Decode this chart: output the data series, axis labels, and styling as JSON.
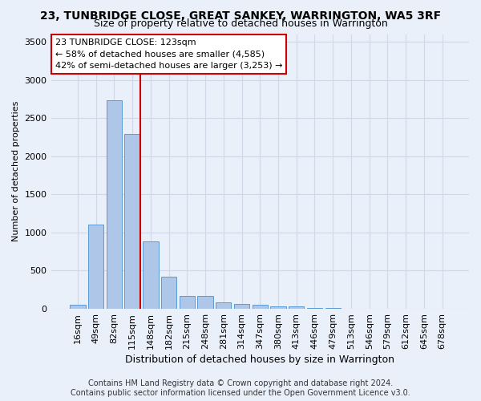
{
  "title1": "23, TUNBRIDGE CLOSE, GREAT SANKEY, WARRINGTON, WA5 3RF",
  "title2": "Size of property relative to detached houses in Warrington",
  "xlabel": "Distribution of detached houses by size in Warrington",
  "ylabel": "Number of detached properties",
  "categories": [
    "16sqm",
    "49sqm",
    "82sqm",
    "115sqm",
    "148sqm",
    "182sqm",
    "215sqm",
    "248sqm",
    "281sqm",
    "314sqm",
    "347sqm",
    "380sqm",
    "413sqm",
    "446sqm",
    "479sqm",
    "513sqm",
    "546sqm",
    "579sqm",
    "612sqm",
    "645sqm",
    "678sqm"
  ],
  "values": [
    55,
    1105,
    2730,
    2290,
    880,
    425,
    170,
    165,
    90,
    60,
    55,
    30,
    30,
    10,
    10,
    0,
    0,
    0,
    0,
    0,
    0
  ],
  "bar_color": "#aec6e8",
  "bar_edge_color": "#5b9bd5",
  "vline_x_idx": 3,
  "vline_color": "#cc0000",
  "annotation_line1": "23 TUNBRIDGE CLOSE: 123sqm",
  "annotation_line2": "← 58% of detached houses are smaller (4,585)",
  "annotation_line3": "42% of semi-detached houses are larger (3,253) →",
  "annotation_box_color": "white",
  "annotation_box_edge": "#cc0000",
  "ylim": [
    0,
    3600
  ],
  "yticks": [
    0,
    500,
    1000,
    1500,
    2000,
    2500,
    3000,
    3500
  ],
  "footer": "Contains HM Land Registry data © Crown copyright and database right 2024.\nContains public sector information licensed under the Open Government Licence v3.0.",
  "bg_color": "#eaf0fa",
  "grid_color": "#d0d8e8",
  "title1_fontsize": 10,
  "title2_fontsize": 9,
  "xlabel_fontsize": 9,
  "ylabel_fontsize": 8,
  "tick_fontsize": 8,
  "footer_fontsize": 7
}
